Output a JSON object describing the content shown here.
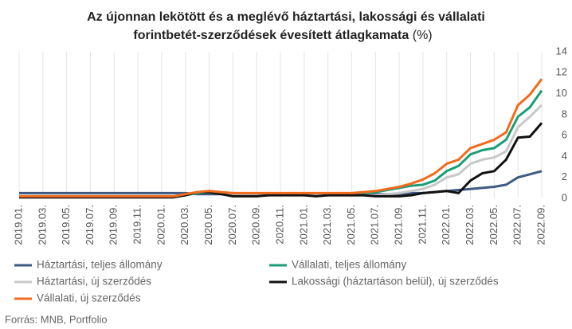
{
  "chart_data": {
    "type": "line",
    "title": [
      "Az újonnan lekötött és a meglévő háztartási, lakossági és vállalati",
      "forintbetét-szerződések évesített átlagkamata"
    ],
    "unit": "(%)",
    "source": "Forrás: MNB, Portfolio",
    "categories": [
      "2019.01.",
      null,
      "2019.03.",
      null,
      "2019.05.",
      null,
      "2019.07.",
      null,
      "2019.09.",
      null,
      "2019.11.",
      null,
      "2020.01.",
      null,
      "2020.03.",
      null,
      "2020.05.",
      null,
      "2020.07.",
      null,
      "2020.09.",
      null,
      "2020.11.",
      null,
      "2021.01.",
      null,
      "2021.03.",
      null,
      "2021.05.",
      null,
      "2021.07.",
      null,
      "2021.09.",
      null,
      "2021.11.",
      null,
      "2022.01.",
      null,
      "2022.03.",
      null,
      "2022.05.",
      null,
      "2022.07.",
      null,
      "2022.09."
    ],
    "series": [
      {
        "name": "Háztartási, teljes állomány",
        "color": "#3d5a80",
        "values": [
          0.5,
          0.5,
          0.5,
          0.5,
          0.5,
          0.5,
          0.5,
          0.5,
          0.5,
          0.5,
          0.5,
          0.5,
          0.5,
          0.5,
          0.5,
          0.4,
          0.4,
          0.4,
          0.4,
          0.4,
          0.4,
          0.4,
          0.4,
          0.4,
          0.4,
          0.4,
          0.4,
          0.4,
          0.4,
          0.4,
          0.4,
          0.4,
          0.4,
          0.5,
          0.5,
          0.6,
          0.7,
          0.8,
          0.9,
          1.0,
          1.1,
          1.3,
          2.0,
          2.3,
          2.6
        ]
      },
      {
        "name": "Vállalati, teljes állomány",
        "color": "#1a9e77",
        "values": [
          0.2,
          0.2,
          0.2,
          0.2,
          0.2,
          0.2,
          0.2,
          0.2,
          0.2,
          0.2,
          0.2,
          0.2,
          0.2,
          0.2,
          0.3,
          0.5,
          0.6,
          0.5,
          0.5,
          0.4,
          0.4,
          0.4,
          0.4,
          0.4,
          0.4,
          0.4,
          0.4,
          0.4,
          0.4,
          0.5,
          0.6,
          0.8,
          1.0,
          1.2,
          1.3,
          1.7,
          2.6,
          3.1,
          4.2,
          4.6,
          4.8,
          5.6,
          7.8,
          8.7,
          10.3
        ]
      },
      {
        "name": "Háztartási, új szerződés",
        "color": "#c8c8c8",
        "values": [
          0.2,
          0.2,
          0.2,
          0.2,
          0.2,
          0.2,
          0.2,
          0.2,
          0.2,
          0.2,
          0.2,
          0.2,
          0.2,
          0.2,
          0.3,
          0.6,
          0.7,
          0.5,
          0.4,
          0.4,
          0.4,
          0.4,
          0.4,
          0.4,
          0.3,
          0.3,
          0.3,
          0.3,
          0.3,
          0.3,
          0.3,
          0.4,
          0.5,
          0.7,
          0.9,
          1.3,
          2.0,
          2.3,
          3.3,
          3.7,
          3.9,
          4.5,
          6.8,
          7.8,
          8.9
        ]
      },
      {
        "name": "Lakossági (háztartáson belül), új szerződés",
        "color": "#111111",
        "values": [
          0.1,
          0.1,
          0.1,
          0.1,
          0.1,
          0.1,
          0.1,
          0.1,
          0.1,
          0.1,
          0.1,
          0.1,
          0.1,
          0.1,
          0.3,
          0.6,
          0.6,
          0.4,
          0.2,
          0.2,
          0.2,
          0.3,
          0.3,
          0.3,
          0.3,
          0.2,
          0.3,
          0.3,
          0.3,
          0.3,
          0.2,
          0.2,
          0.2,
          0.3,
          0.5,
          0.6,
          0.7,
          0.5,
          1.7,
          2.4,
          2.6,
          3.7,
          5.8,
          5.9,
          7.2
        ]
      },
      {
        "name": "Vállalati, új szerződés",
        "color": "#f26b1d",
        "values": [
          0.2,
          0.2,
          0.2,
          0.2,
          0.2,
          0.2,
          0.2,
          0.2,
          0.2,
          0.2,
          0.2,
          0.2,
          0.2,
          0.2,
          0.4,
          0.6,
          0.7,
          0.6,
          0.5,
          0.5,
          0.5,
          0.5,
          0.5,
          0.5,
          0.5,
          0.5,
          0.5,
          0.5,
          0.5,
          0.6,
          0.7,
          0.9,
          1.1,
          1.4,
          1.8,
          2.4,
          3.3,
          3.7,
          4.8,
          5.2,
          5.6,
          6.3,
          8.9,
          9.9,
          11.4
        ]
      }
    ],
    "ylim": [
      0,
      14
    ],
    "yticks": [
      0,
      2,
      4,
      6,
      8,
      10,
      12,
      14
    ],
    "grid": "x"
  }
}
